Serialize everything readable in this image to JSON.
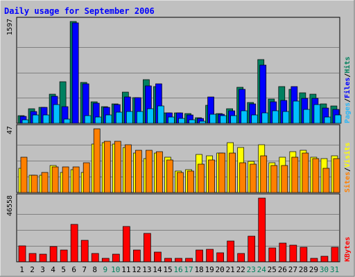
{
  "chart_data": {
    "type": "bar",
    "title": "Daily usage for September 2006",
    "categories": [
      "1",
      "2",
      "3",
      "4",
      "5",
      "6",
      "7",
      "8",
      "9",
      "10",
      "11",
      "12",
      "13",
      "14",
      "15",
      "16",
      "17",
      "18",
      "19",
      "20",
      "21",
      "22",
      "23",
      "24",
      "25",
      "26",
      "27",
      "28",
      "29",
      "30",
      "31"
    ],
    "weekend_days": [
      "9",
      "10",
      "16",
      "17",
      "23",
      "24",
      "30",
      "31"
    ],
    "panels": [
      {
        "id": "traffic",
        "ymax_label": "1597",
        "ymax": 1597,
        "right_labels": [
          {
            "text": "Pages",
            "color": "#29b6f6"
          },
          {
            "text": "/",
            "color": "#000000"
          },
          {
            "text": "Files",
            "color": "#0000ff"
          },
          {
            "text": "/",
            "color": "#000000"
          },
          {
            "text": "Hits",
            "color": "#00805c"
          }
        ],
        "series": [
          {
            "name": "Hits",
            "color": "#008060",
            "values": [
              115,
              230,
              255,
              460,
              650,
              1597,
              640,
              335,
              265,
              305,
              490,
              400,
              680,
              575,
              165,
              160,
              150,
              90,
              280,
              155,
              225,
              560,
              325,
              1000,
              380,
              580,
              535,
              480,
              455,
              305,
              270
            ]
          },
          {
            "name": "Files",
            "color": "#0000ff",
            "values": [
              105,
              190,
              255,
              420,
              260,
              1570,
              620,
              320,
              250,
              290,
              415,
              400,
              585,
              620,
              160,
              160,
              130,
              80,
              410,
              145,
              200,
              530,
              300,
              910,
              340,
              360,
              575,
              395,
              395,
              235,
              220
            ]
          },
          {
            "name": "Pages",
            "color": "#00c0ff",
            "values": [
              50,
              130,
              130,
              290,
              70,
              0,
              115,
              100,
              130,
              170,
              180,
              190,
              230,
              270,
              95,
              75,
              55,
              30,
              140,
              115,
              120,
              195,
              130,
              165,
              195,
              190,
              350,
              220,
              290,
              95,
              125
            ]
          }
        ]
      },
      {
        "id": "visits",
        "ymax_label": "47",
        "ymax": 47,
        "right_labels": [
          {
            "text": "Sites",
            "color": "#ff8000"
          },
          {
            "text": "/",
            "color": "#000000"
          },
          {
            "text": "Visits",
            "color": "#ffff00"
          }
        ],
        "series": [
          {
            "name": "Visits",
            "color": "#ffff00",
            "values": [
              18,
              13,
              13,
              20,
              15,
              17,
              15,
              36,
              37,
              36,
              33,
              29,
              25,
              29,
              26,
              16,
              17,
              28,
              27,
              29,
              37,
              33,
              23,
              35,
              22,
              26,
              30,
              31,
              26,
              25,
              27
            ]
          },
          {
            "name": "Sites",
            "color": "#ff8000",
            "values": [
              26,
              13,
              15,
              19,
              19,
              19,
              22,
              47,
              38,
              38,
              35,
              31,
              31,
              30,
              24,
              15,
              16,
              21,
              24,
              29,
              29,
              22,
              21,
              27,
              20,
              20,
              26,
              29,
              25,
              18,
              25
            ]
          }
        ]
      },
      {
        "id": "kbytes",
        "ymax_label": "46558",
        "ymax": 46558,
        "right_labels": [
          {
            "text": "KBytes",
            "color": "#ff0000"
          }
        ],
        "series": [
          {
            "name": "KBytes",
            "color": "#ff0000",
            "values": [
              11500,
              6000,
              5500,
              11000,
              8500,
              27500,
              15500,
              6000,
              2500,
              5500,
              26000,
              8500,
              20500,
              7000,
              2500,
              2500,
              2500,
              8500,
              9000,
              6500,
              15000,
              6000,
              18500,
              46558,
              10000,
              13500,
              12000,
              10500,
              2500,
              4000,
              10500
            ]
          }
        ]
      }
    ]
  },
  "colors": {
    "background": "#c0c0c0",
    "gridline": "#808080",
    "title": "#0000ff",
    "day_weekday": "#000000",
    "day_weekend": "#00805c"
  }
}
